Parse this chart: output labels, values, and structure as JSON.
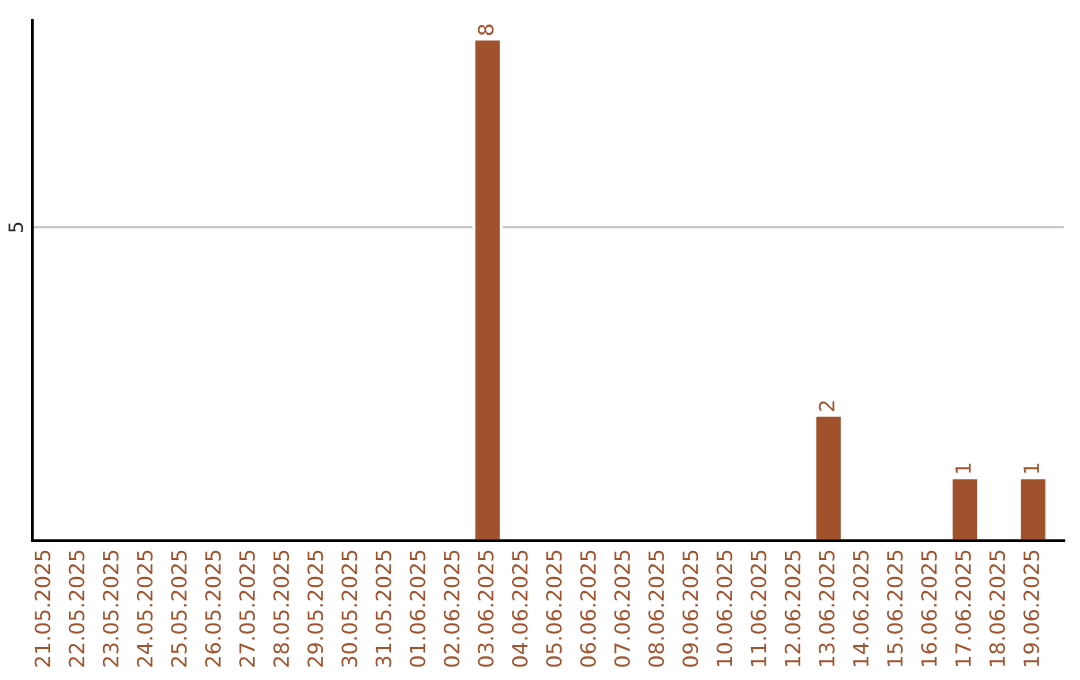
{
  "chart_data": {
    "type": "bar",
    "categories": [
      "21.05.2025",
      "22.05.2025",
      "23.05.2025",
      "24.05.2025",
      "25.05.2025",
      "26.05.2025",
      "27.05.2025",
      "28.05.2025",
      "29.05.2025",
      "30.05.2025",
      "31.05.2025",
      "01.06.2025",
      "02.06.2025",
      "03.06.2025",
      "04.06.2025",
      "05.06.2025",
      "06.06.2025",
      "07.06.2025",
      "08.06.2025",
      "09.06.2025",
      "10.06.2025",
      "11.06.2025",
      "12.06.2025",
      "13.06.2025",
      "14.06.2025",
      "15.06.2025",
      "16.06.2025",
      "17.06.2025",
      "18.06.2025",
      "19.06.2025"
    ],
    "values": [
      null,
      null,
      null,
      null,
      null,
      null,
      null,
      null,
      null,
      null,
      null,
      null,
      null,
      8,
      null,
      null,
      null,
      null,
      null,
      null,
      null,
      null,
      null,
      2,
      null,
      null,
      null,
      1,
      null,
      1
    ],
    "data_labels": true,
    "color": "#a0522d",
    "ylim": [
      0,
      8.3
    ],
    "yticks": [
      5
    ],
    "grid": "y"
  }
}
